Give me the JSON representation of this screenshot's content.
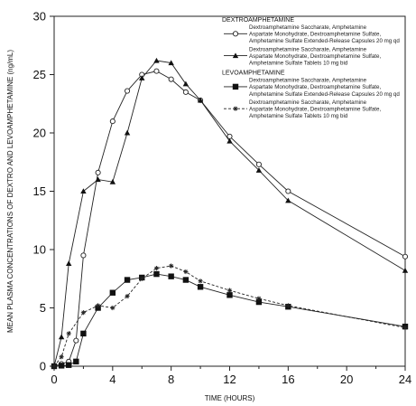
{
  "chart_data": {
    "type": "line",
    "xlabel": "TIME (HOURS)",
    "ylabel": "MEAN PLASMA CONCENTRATIONS OF DEXTRO AND LEVOAMPHETAMINE (ng/mL)",
    "xlim": [
      0,
      24
    ],
    "ylim": [
      0,
      30
    ],
    "xticks": [
      "0",
      "4",
      "8",
      "12",
      "16",
      "20",
      "24"
    ],
    "yticks": [
      "0",
      "5",
      "10",
      "15",
      "20",
      "25",
      "30"
    ],
    "grid": false,
    "legend_position": "top-right",
    "legend_groups": [
      {
        "title": "DEXTROAMPHETAMINE",
        "series": [
          0,
          1
        ]
      },
      {
        "title": "LEVOAMPHETAMINE",
        "series": [
          2,
          3
        ]
      }
    ],
    "series": [
      {
        "name": "Dextroamphetamine Saccharate, Amphetamine Aspartate Monohydrate, Dextroamphetamine Sulfate, Amphetamine Sulfate Extended-Release Capsules 20 mg qd",
        "legend_lines": [
          "Dextroamphetamine Saccharate, Amphetamine",
          "Aspartate Monohydrate, Dextroamphetamine Sulfate,",
          "Amphetamine Sulfate Extended-Release Capsules 20 mg qd"
        ],
        "marker": "open-circle",
        "dash": "solid",
        "x": [
          0,
          0.5,
          1,
          1.5,
          2,
          3,
          4,
          5,
          6,
          7,
          8,
          9,
          10,
          12,
          14,
          16,
          24
        ],
        "y": [
          0,
          0.2,
          0.4,
          2.2,
          9.5,
          16.6,
          21,
          23.6,
          25,
          25.3,
          24.6,
          23.5,
          22.8,
          19.7,
          17.3,
          15,
          9.4
        ]
      },
      {
        "name": "Dextroamphetamine Saccharate, Amphetamine Aspartate Monohydrate, Dextroamphetamine Sulfate, Amphetamine Sulfate Tablets 10 mg bid",
        "legend_lines": [
          "Dextroamphetamine Saccharate, Amphetamine",
          "Aspartate Monohydrate, Dextroamphetamine Sulfate,",
          "Amphetamine Sulfate Tablets 10 mg bid"
        ],
        "marker": "filled-triangle",
        "dash": "solid",
        "x": [
          0,
          0.5,
          1,
          2,
          3,
          4,
          5,
          6,
          7,
          8,
          9,
          10,
          12,
          14,
          16,
          24
        ],
        "y": [
          0,
          2.5,
          8.8,
          15,
          16,
          15.8,
          20,
          24.7,
          26.2,
          26,
          24.2,
          22.8,
          19.3,
          16.8,
          14.2,
          8.2
        ]
      },
      {
        "name": "Dextroamphetamine Saccharate, Amphetamine Aspartate Monohydrate, Dextroamphetamine Sulfate, Amphetamine Sulfate Extended-Release Capsules 20 mg qd",
        "legend_lines": [
          "Dextroamphetamine Saccharate, Amphetamine",
          "Aspartate Monohydrate, Dextroamphetamine Sulfate,",
          "Amphetamine Sulfate Extended-Release Capsules 20 mg qd"
        ],
        "marker": "filled-square",
        "dash": "solid",
        "x": [
          0,
          0.5,
          1,
          1.5,
          2,
          3,
          4,
          5,
          6,
          7,
          8,
          9,
          10,
          12,
          14,
          16,
          24
        ],
        "y": [
          0,
          0.05,
          0.1,
          0.4,
          2.8,
          5,
          6.3,
          7.4,
          7.6,
          7.9,
          7.7,
          7.4,
          6.8,
          6.1,
          5.5,
          5.1,
          3.4
        ]
      },
      {
        "name": "Dextroamphetamine Saccharate, Amphetamine Aspartate Monohydrate, Dextroamphetamine Sulfate, Amphetamine Sulfate Tablets 10 mg bid",
        "legend_lines": [
          "Dextroamphetamine Saccharate, Amphetamine",
          "Aspartate Monohydrate, Dextroamphetamine Sulfate,",
          "Amphetamine Sulfate Tablets 10 mg bid"
        ],
        "marker": "asterisk",
        "dash": "dashed",
        "x": [
          0,
          0.5,
          1,
          2,
          3,
          4,
          5,
          6,
          7,
          8,
          9,
          10,
          12,
          14,
          16,
          24
        ],
        "y": [
          0,
          0.8,
          2.8,
          4.6,
          5.2,
          5,
          6,
          7.5,
          8.4,
          8.6,
          8.1,
          7.3,
          6.5,
          5.8,
          5.2,
          3.3
        ]
      }
    ]
  }
}
